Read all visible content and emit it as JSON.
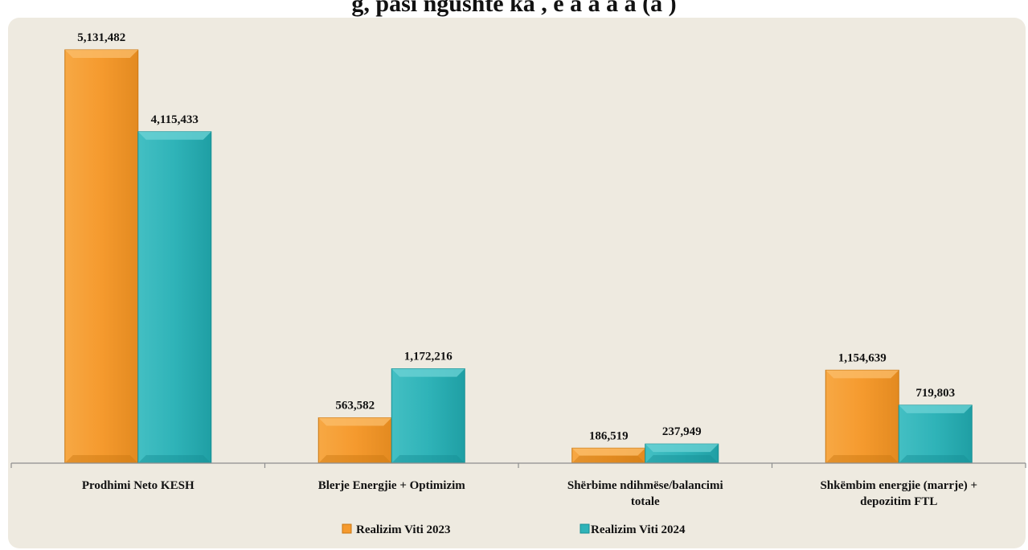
{
  "title_fragment": "g, pasi ngushtë ka , e a  a   a        a  (a  )",
  "chart_data": {
    "type": "bar",
    "categories": [
      [
        "Prodhimi Neto KESH"
      ],
      [
        "Blerje Energjie + Optimizim"
      ],
      [
        "Shërbime ndihmëse/balancimi",
        "totale"
      ],
      [
        "Shkëmbim energjie (marrje) +",
        "depozitim FTL"
      ]
    ],
    "series": [
      {
        "name": "Realizim Viti 2023",
        "values": [
          5131482,
          563582,
          186519,
          1154639
        ],
        "labels": [
          "5,131,482",
          "563,582",
          "186,519",
          "1,154,639"
        ],
        "color": "#f59a2e"
      },
      {
        "name": "Realizim Viti 2024",
        "values": [
          4115433,
          1172216,
          237949,
          719803
        ],
        "labels": [
          "4,115,433",
          "1,172,216",
          "237,949",
          "719,803"
        ],
        "color": "#2fb3b8"
      }
    ],
    "ylim": [
      0,
      5131482
    ],
    "grid": false,
    "legend": "bottom"
  }
}
